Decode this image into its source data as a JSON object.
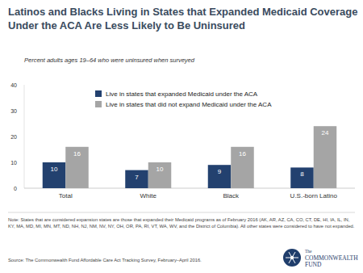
{
  "chart_data": {
    "type": "bar",
    "title": "Latinos and Blacks Living in States that Expanded Medicaid Coverage Under the ACA Are Less Likely to Be Uninsured",
    "subtitle": "Percent adults ages 19–64 who were uninsured when surveyed",
    "categories": [
      "Total",
      "White",
      "Black",
      "U.S.-born Latino"
    ],
    "series": [
      {
        "name": "Live in states that expanded Medicaid under the ACA",
        "color": "#23416f",
        "values": [
          10,
          7,
          9,
          8
        ]
      },
      {
        "name": "Live in states that did not expand Medicaid under the ACA",
        "color": "#a5a5a5",
        "values": [
          16,
          10,
          16,
          24
        ]
      }
    ],
    "ylim": [
      0,
      40
    ],
    "yticks": [
      0,
      10,
      20,
      30,
      40
    ],
    "grid": false,
    "legend": "top-left",
    "data_labels": true,
    "note": "Note: States that are considered expansion states are those that expanded their Medicaid programs as of February 2016 (AK, AR, AZ, CA, CO, CT, DE, HI, IA, IL, IN, KY, MA, MD, MI, MN, MT, ND, NH, NJ, NM, NV, NY, OH, OR, PA, RI, VT, WA, WV, and the District of Columbia). All other states were considered to have not expanded.",
    "source": "Source: The Commonwealth Fund Affordable Care Act Tracking Survey, February–April 2016.",
    "logo": [
      "The",
      "COMMONWEALTH",
      "FUND"
    ]
  }
}
